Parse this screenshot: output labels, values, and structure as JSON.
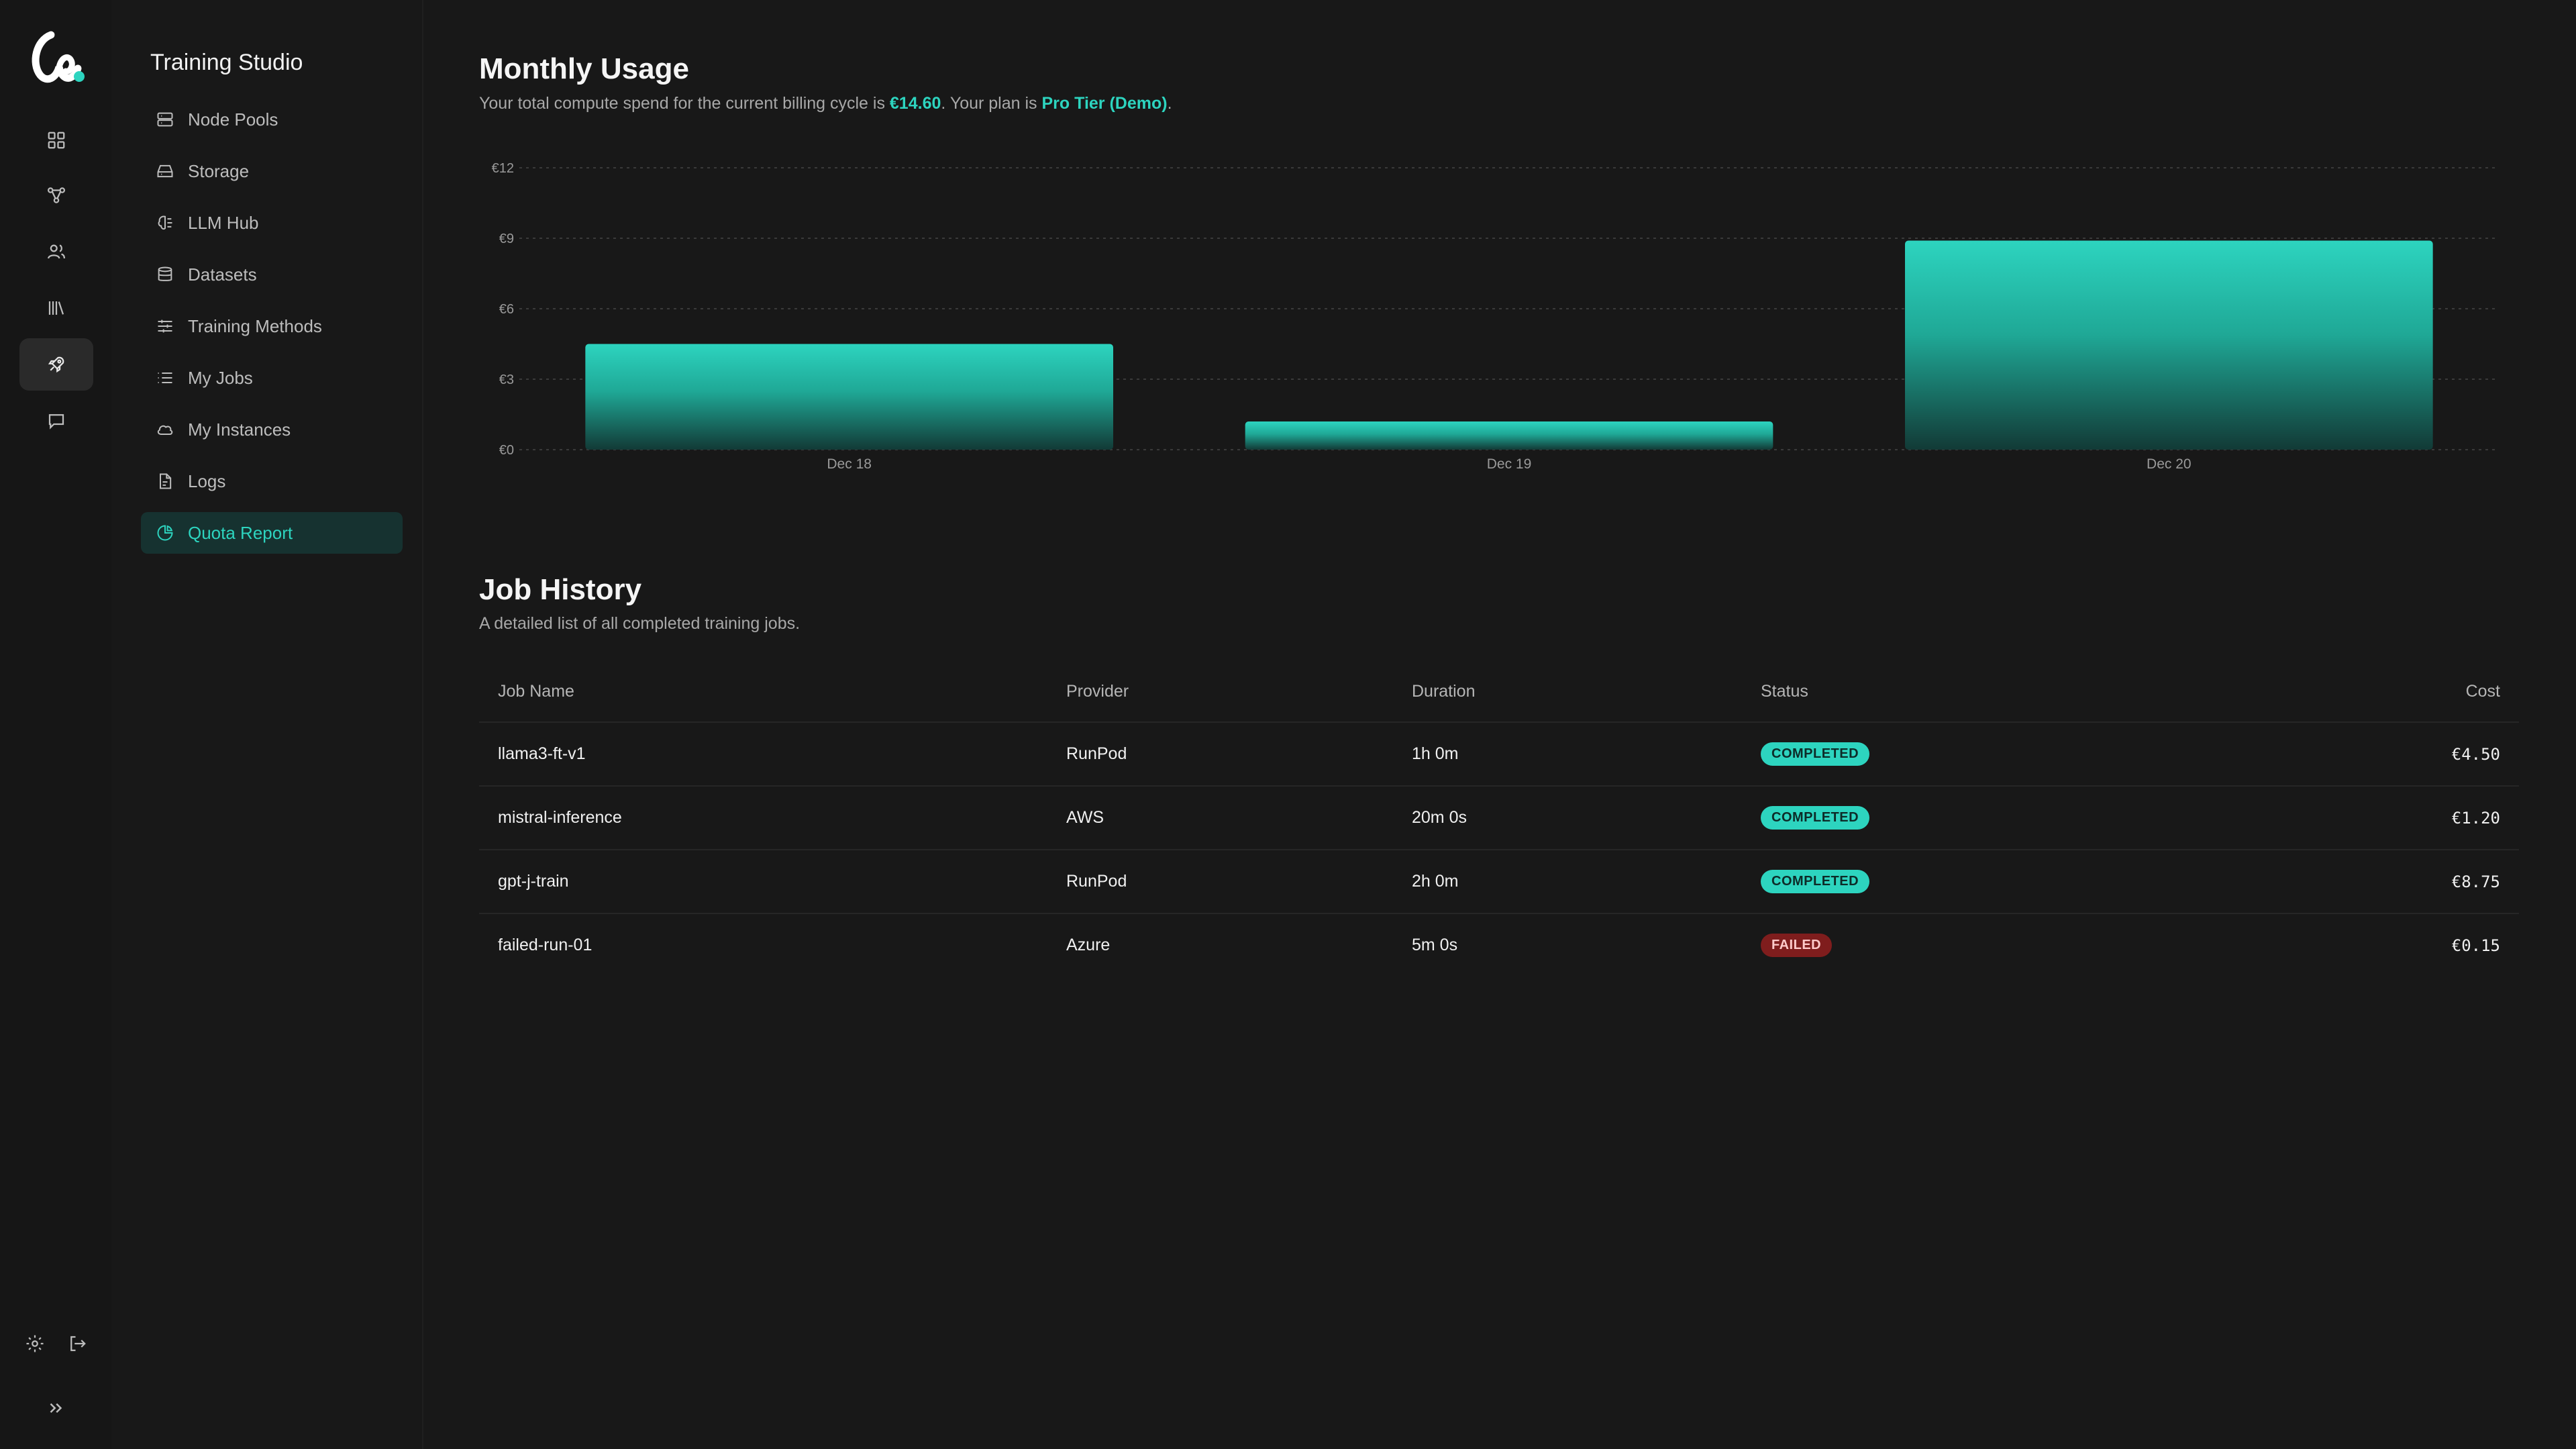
{
  "app": {
    "title": "Training Studio"
  },
  "rail": {
    "items": [
      {
        "icon": "dashboard-icon"
      },
      {
        "icon": "nodes-icon"
      },
      {
        "icon": "users-icon"
      },
      {
        "icon": "library-icon"
      },
      {
        "icon": "rocket-icon",
        "active": true
      },
      {
        "icon": "chat-icon"
      }
    ],
    "footer": [
      "gear-icon",
      "logout-icon",
      "expand-icon"
    ]
  },
  "nav": {
    "items": [
      {
        "label": "Node Pools",
        "icon": "server-icon"
      },
      {
        "label": "Storage",
        "icon": "drive-icon"
      },
      {
        "label": "LLM Hub",
        "icon": "brain-icon"
      },
      {
        "label": "Datasets",
        "icon": "database-icon"
      },
      {
        "label": "Training Methods",
        "icon": "sliders-icon"
      },
      {
        "label": "My Jobs",
        "icon": "list-icon"
      },
      {
        "label": "My Instances",
        "icon": "cloud-icon"
      },
      {
        "label": "Logs",
        "icon": "file-icon"
      },
      {
        "label": "Quota Report",
        "icon": "pie-icon",
        "active": true
      }
    ]
  },
  "usage": {
    "title": "Monthly Usage",
    "subtitle_pre": "Your total compute spend for the current billing cycle is ",
    "total": "€14.60",
    "subtitle_mid": ". Your plan is ",
    "plan": "Pro Tier (Demo)",
    "subtitle_post": "."
  },
  "chart_data": {
    "type": "bar",
    "categories": [
      "Dec 18",
      "Dec 19",
      "Dec 20"
    ],
    "values": [
      4.5,
      1.2,
      8.9
    ],
    "ylim": [
      0,
      12
    ],
    "yticks": [
      0,
      3,
      6,
      9,
      12
    ],
    "ytick_labels": [
      "€0",
      "€3",
      "€6",
      "€9",
      "€12"
    ],
    "grid": true,
    "bar_color": "#2dd4bf"
  },
  "history": {
    "title": "Job History",
    "subtitle": "A detailed list of all completed training jobs.",
    "columns": [
      "Job Name",
      "Provider",
      "Duration",
      "Status",
      "Cost"
    ],
    "rows": [
      {
        "name": "llama3-ft-v1",
        "provider": "RunPod",
        "duration": "1h 0m",
        "status": "COMPLETED",
        "cost": "€4.50"
      },
      {
        "name": "mistral-inference",
        "provider": "AWS",
        "duration": "20m 0s",
        "status": "COMPLETED",
        "cost": "€1.20"
      },
      {
        "name": "gpt-j-train",
        "provider": "RunPod",
        "duration": "2h 0m",
        "status": "COMPLETED",
        "cost": "€8.75"
      },
      {
        "name": "failed-run-01",
        "provider": "Azure",
        "duration": "5m 0s",
        "status": "FAILED",
        "cost": "€0.15"
      }
    ]
  },
  "colors": {
    "accent": "#2dd4bf",
    "background": "#181818",
    "failed": "#7f1d1d"
  }
}
